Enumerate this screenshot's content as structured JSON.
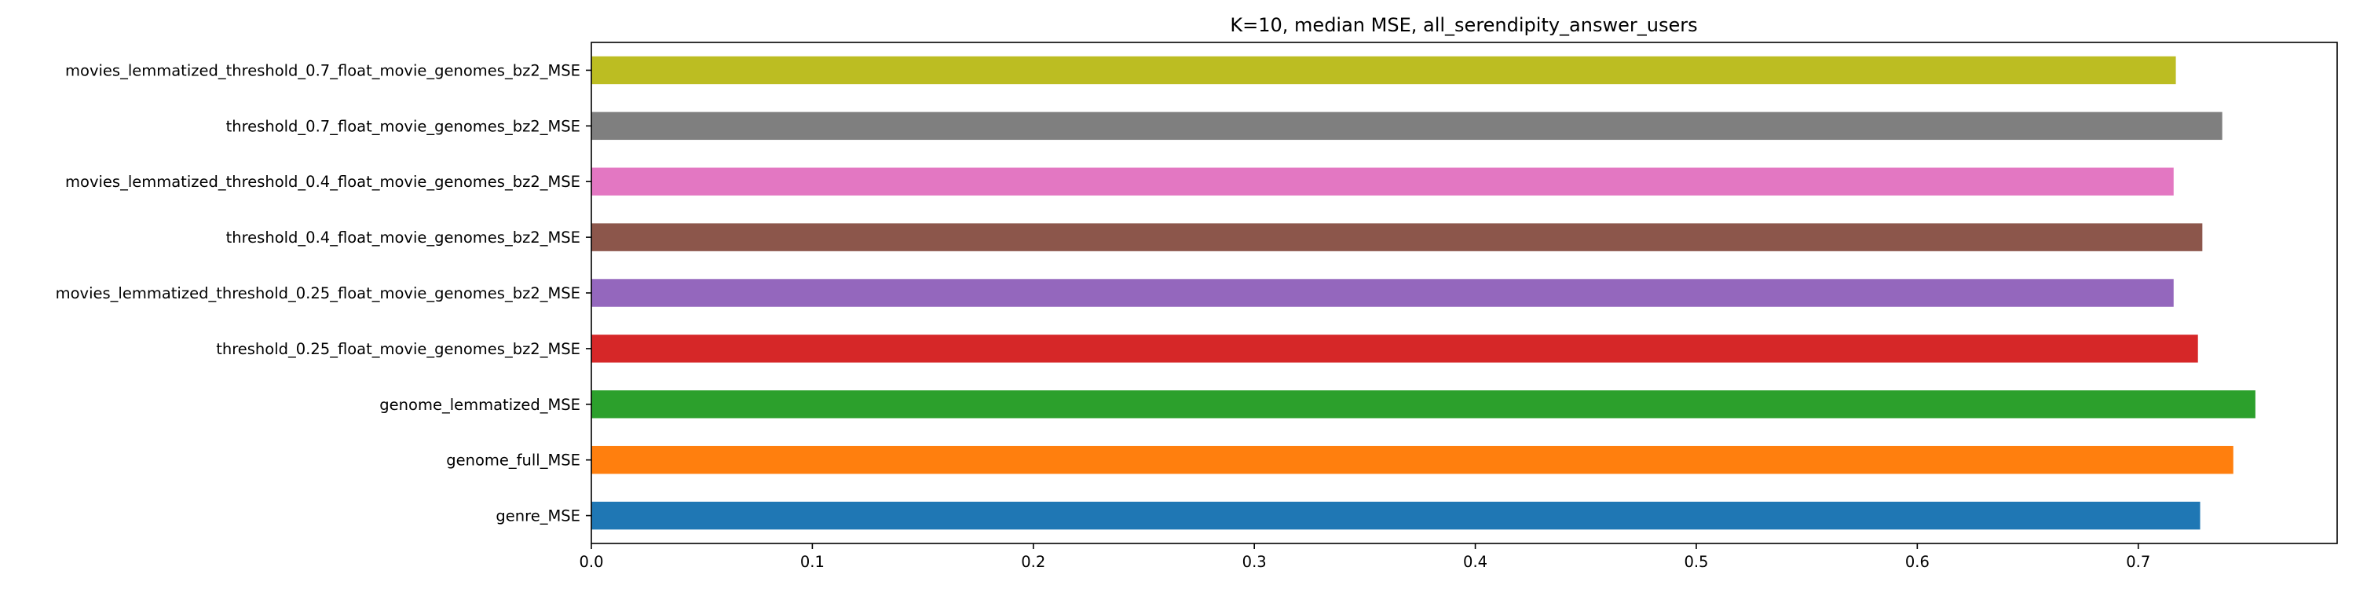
{
  "chart_data": {
    "type": "bar",
    "orientation": "horizontal",
    "title": "K=10, median MSE, all_serendipity_answer_users",
    "xlabel": "",
    "ylabel": "",
    "xlim": [
      0,
      0.79
    ],
    "xticks": [
      0.0,
      0.1,
      0.2,
      0.3,
      0.4,
      0.5,
      0.6,
      0.7
    ],
    "xtick_labels": [
      "0.0",
      "0.1",
      "0.2",
      "0.3",
      "0.4",
      "0.5",
      "0.6",
      "0.7"
    ],
    "grid": false,
    "legend": "none",
    "bars": [
      {
        "label": "genre_MSE",
        "value": 0.728,
        "color": "#1f77b4"
      },
      {
        "label": "genome_full_MSE",
        "value": 0.743,
        "color": "#ff7f0e"
      },
      {
        "label": "genome_lemmatized_MSE",
        "value": 0.753,
        "color": "#2ca02c"
      },
      {
        "label": "threshold_0.25_float_movie_genomes_bz2_MSE",
        "value": 0.727,
        "color": "#d62728"
      },
      {
        "label": "movies_lemmatized_threshold_0.25_float_movie_genomes_bz2_MSE",
        "value": 0.716,
        "color": "#9467bd"
      },
      {
        "label": "threshold_0.4_float_movie_genomes_bz2_MSE",
        "value": 0.729,
        "color": "#8c564b"
      },
      {
        "label": "movies_lemmatized_threshold_0.4_float_movie_genomes_bz2_MSE",
        "value": 0.716,
        "color": "#e377c2"
      },
      {
        "label": "threshold_0.7_float_movie_genomes_bz2_MSE",
        "value": 0.738,
        "color": "#7f7f7f"
      },
      {
        "label": "movies_lemmatized_threshold_0.7_float_movie_genomes_bz2_MSE",
        "value": 0.717,
        "color": "#bcbd22"
      }
    ]
  }
}
